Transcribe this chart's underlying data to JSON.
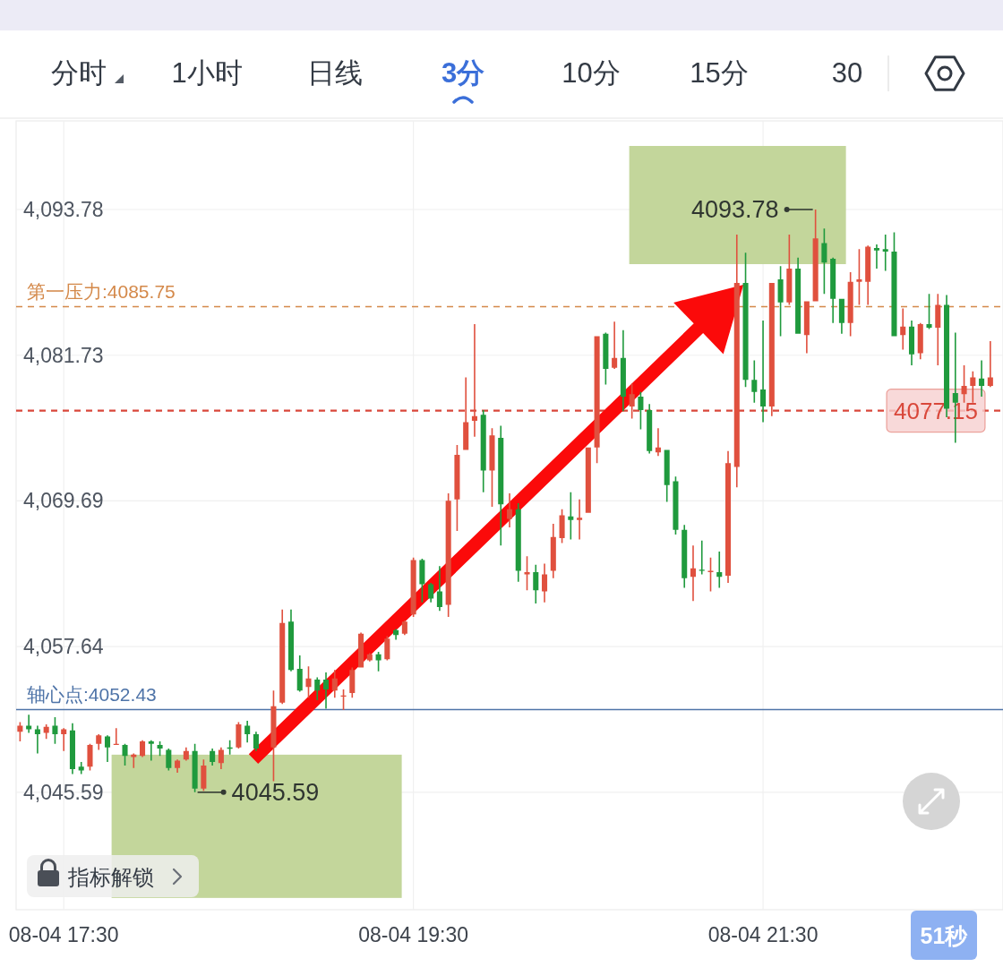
{
  "chart_data": {
    "type": "candlestick",
    "categories": [
      null,
      null,
      null,
      null,
      null,
      "08-04 17:30",
      null,
      null,
      null,
      null,
      null,
      null,
      null,
      null,
      null,
      null,
      null,
      null,
      null,
      null,
      null,
      null,
      null,
      null,
      null,
      null,
      null,
      null,
      null,
      null,
      null,
      null,
      null,
      null,
      null,
      null,
      null,
      null,
      null,
      null,
      null,
      null,
      null,
      null,
      null,
      "08-04 19:30",
      null,
      null,
      null,
      null,
      null,
      null,
      null,
      null,
      null,
      null,
      null,
      null,
      null,
      null,
      null,
      null,
      null,
      null,
      null,
      null,
      null,
      null,
      null,
      null,
      null,
      null,
      null,
      null,
      null,
      null,
      null,
      null,
      null,
      null,
      null,
      null,
      null,
      null,
      null,
      "08-04 21:30",
      null,
      null,
      null,
      null,
      null,
      null,
      null,
      null,
      null,
      null,
      null,
      null,
      null,
      null,
      null,
      null,
      null,
      null,
      null,
      null,
      null,
      null,
      null,
      null,
      null,
      null
    ],
    "ohlc": [
      [
        4050.6,
        4051.4,
        4049.8,
        4051.1
      ],
      [
        4051.1,
        4052.0,
        4050.5,
        4050.8
      ],
      [
        4050.8,
        4051.1,
        4048.8,
        4050.4
      ],
      [
        4050.5,
        4051.2,
        4050.0,
        4051.0
      ],
      [
        4051.1,
        4051.8,
        4049.6,
        4050.4
      ],
      [
        4050.4,
        4050.9,
        4049.0,
        4050.8
      ],
      [
        4050.7,
        4051.3,
        4047.1,
        4047.5
      ],
      [
        4047.7,
        4048.1,
        4047.1,
        4047.4
      ],
      [
        4047.7,
        4049.6,
        4047.4,
        4049.5
      ],
      [
        4049.6,
        4050.4,
        4049.1,
        4050.3
      ],
      [
        4050.2,
        4050.3,
        4048.1,
        4049.3
      ],
      [
        4049.5,
        4050.9,
        4049.5,
        4049.6
      ],
      [
        4049.5,
        4049.6,
        4047.8,
        4048.6
      ],
      [
        4048.5,
        4048.8,
        4047.6,
        4048.7
      ],
      [
        4048.6,
        4049.9,
        4048.5,
        4049.8
      ],
      [
        4049.8,
        4049.9,
        4048.2,
        4049.6
      ],
      [
        4049.5,
        4049.8,
        4048.6,
        4049.2
      ],
      [
        4049.1,
        4049.2,
        4047.4,
        4047.6
      ],
      [
        4047.6,
        4048.3,
        4047.2,
        4048.2
      ],
      [
        4048.3,
        4049.3,
        4048.2,
        4049.0
      ],
      [
        4049.0,
        4049.6,
        4045.59,
        4045.9
      ],
      [
        4045.9,
        4048.3,
        4045.7,
        4047.8
      ],
      [
        4049.0,
        4049.2,
        4047.8,
        4048.1
      ],
      [
        4048.0,
        4049.3,
        4047.5,
        4049.1
      ],
      [
        4049.3,
        4049.9,
        4048.7,
        4049.2
      ],
      [
        4049.3,
        4051.4,
        4049.2,
        4051.2
      ],
      [
        4051.1,
        4051.5,
        4049.7,
        4050.4
      ],
      [
        4050.4,
        4050.6,
        4049.0,
        4049.2
      ],
      null,
      [
        4049.3,
        4054.0,
        4046.5,
        4052.7
      ],
      [
        4053.0,
        4060.7,
        4052.9,
        4059.6
      ],
      [
        4059.7,
        4060.7,
        4055.6,
        4055.7
      ],
      [
        4055.8,
        4056.9,
        4053.9,
        4054.0
      ],
      [
        4054.3,
        4056.0,
        4053.4,
        4055.0
      ],
      [
        4054.9,
        4055.1,
        4053.2,
        4054.0
      ],
      [
        4054.9,
        4055.5,
        4052.5,
        4054.1
      ],
      [
        4054.0,
        4055.7,
        4053.4,
        4055.0
      ],
      [
        4053.5,
        4054.1,
        4052.4,
        4053.6
      ],
      [
        4053.8,
        4055.9,
        4053.4,
        4055.7
      ],
      [
        4055.9,
        4058.8,
        4055.9,
        4058.7
      ],
      [
        4056.5,
        4057.1,
        4056.4,
        4057.0
      ],
      [
        4057.0,
        4057.2,
        4055.6,
        4056.5
      ],
      [
        4056.6,
        4058.5,
        4056.5,
        4058.3
      ],
      [
        4059.0,
        4059.1,
        4058.2,
        4058.6
      ],
      [
        4058.7,
        4059.8,
        4058.6,
        4059.7
      ],
      [
        4060.3,
        4065.0,
        4060.1,
        4064.8
      ],
      [
        4064.8,
        4064.9,
        4061.3,
        4062.8
      ],
      [
        4062.8,
        4062.9,
        4061.3,
        4061.6
      ],
      [
        4062.2,
        4064.3,
        4060.6,
        4060.9
      ],
      [
        4061.1,
        4070.3,
        4060.1,
        4069.7
      ],
      [
        4069.8,
        4074.3,
        4067.2,
        4073.5
      ],
      [
        4073.9,
        4079.9,
        4073.9,
        4076.2
      ],
      [
        4076.3,
        4084.3,
        4075.0,
        4076.7
      ],
      [
        4076.8,
        4077.2,
        4070.4,
        4072.2
      ],
      [
        4072.2,
        4075.7,
        4069.2,
        4075.1
      ],
      [
        4074.9,
        4075.9,
        4066.0,
        4069.4
      ],
      [
        4068.2,
        4070.3,
        4067.5,
        4069.0
      ],
      [
        4069.0,
        4069.5,
        4063.0,
        4063.9
      ],
      [
        4063.6,
        4065.1,
        4062.3,
        4063.8
      ],
      [
        4063.8,
        4064.4,
        4061.2,
        4062.3
      ],
      [
        4062.2,
        4064.5,
        4061.3,
        4063.6
      ],
      [
        4063.9,
        4067.8,
        4063.3,
        4066.7
      ],
      [
        4066.6,
        4069.0,
        4066.2,
        4068.5
      ],
      [
        4068.4,
        4070.4,
        4066.5,
        4068.1
      ],
      [
        4068.1,
        4069.8,
        4066.5,
        4068.3
      ],
      [
        4068.7,
        4074.1,
        4068.7,
        4074.1
      ],
      [
        4074.1,
        4083.3,
        4072.8,
        4083.3
      ],
      [
        4083.5,
        4083.6,
        4079.3,
        4080.6
      ],
      [
        4080.7,
        4084.5,
        4080.6,
        4081.5
      ],
      [
        4081.5,
        4083.8,
        4077.1,
        4078.3
      ],
      [
        4077.5,
        4079.4,
        4076.5,
        4078.5
      ],
      [
        4078.3,
        4078.7,
        4075.6,
        4077.2
      ],
      [
        4077.2,
        4077.7,
        4073.6,
        4073.8
      ],
      [
        4073.7,
        4075.7,
        4073.4,
        4074.1
      ],
      [
        4073.9,
        4073.9,
        4069.6,
        4071.0
      ],
      [
        4071.3,
        4071.7,
        4066.9,
        4067.3
      ],
      [
        4067.3,
        4067.7,
        4062.5,
        4063.3
      ],
      [
        4063.4,
        4066.0,
        4061.4,
        4064.1
      ],
      [
        4064.0,
        4066.4,
        4063.6,
        4063.9
      ],
      [
        4063.8,
        4065.0,
        4062.2,
        4063.9
      ],
      [
        4063.8,
        4065.5,
        4062.5,
        4063.4
      ],
      [
        4063.5,
        4073.8,
        4062.9,
        4072.8
      ],
      [
        4072.5,
        4091.7,
        4070.8,
        4087.7
      ],
      [
        4087.7,
        4090.2,
        4079.1,
        4079.7
      ],
      [
        4079.7,
        4081.3,
        4077.8,
        4078.7
      ],
      [
        4078.9,
        4084.6,
        4076.2,
        4077.5
      ],
      [
        4077.5,
        4087.7,
        4076.7,
        4087.7
      ],
      [
        4088.0,
        4089.1,
        4083.3,
        4086.1
      ],
      [
        4086.1,
        4091.7,
        4085.9,
        4088.9
      ],
      [
        4088.9,
        4089.8,
        4083.5,
        4083.5
      ],
      [
        4083.4,
        4086.2,
        4081.9,
        4086.2
      ],
      [
        4086.2,
        4093.78,
        4086.2,
        4091.4
      ],
      [
        4091.0,
        4092.2,
        4086.8,
        4089.4
      ],
      [
        4089.7,
        4089.8,
        4084.4,
        4086.4
      ],
      [
        4086.4,
        4086.4,
        4083.5,
        4084.4
      ],
      [
        4084.4,
        4088.6,
        4083.3,
        4087.8
      ],
      [
        4087.8,
        4090.5,
        4085.9,
        4088.0
      ],
      [
        4087.8,
        4090.8,
        4085.9,
        4090.7
      ],
      [
        4090.6,
        4090.9,
        4088.9,
        4090.4
      ],
      [
        4090.5,
        4091.7,
        4088.7,
        4090.3
      ],
      [
        4090.3,
        4091.9,
        4083.3,
        4083.3
      ],
      [
        4083.4,
        4085.6,
        4082.2,
        4084.1
      ],
      [
        4084.1,
        4084.6,
        4080.9,
        4081.8
      ],
      [
        4081.9,
        4084.4,
        4081.4,
        4084.3
      ],
      [
        4084.3,
        4086.8,
        4083.9,
        4084.0
      ],
      [
        4084.0,
        4086.8,
        4080.9,
        4085.9
      ],
      [
        4085.9,
        4086.7,
        4076.6,
        4077.3
      ],
      [
        4078.6,
        4083.6,
        4074.5,
        4077.8
      ],
      [
        4078.5,
        4080.9,
        4077.8,
        4079.2
      ],
      [
        4079.2,
        4080.4,
        4077.8,
        4079.9
      ],
      [
        4079.8,
        4081.3,
        4078.3,
        4079.2
      ],
      [
        4079.2,
        4082.9,
        4079.1,
        4079.9
      ]
    ],
    "colors": [
      "#e0503e",
      "#1f9a3d",
      "#1f9a3d",
      "#e0503e",
      "#1f9a3d",
      "#e0503e",
      "#1f9a3d",
      "#1f9a3d",
      "#e0503e",
      "#e0503e",
      "#1f9a3d",
      "#e0503e",
      "#1f9a3d",
      "#e0503e",
      "#e0503e",
      "#1f9a3d",
      "#1f9a3d",
      "#1f9a3d",
      "#e0503e",
      "#e0503e",
      "#1f9a3d",
      "#e0503e",
      "#1f9a3d",
      "#e0503e",
      "#1f9a3d",
      "#e0503e",
      "#1f9a3d",
      "#1f9a3d",
      null,
      "#e0503e",
      "#e0503e",
      "#1f9a3d",
      "#1f9a3d",
      "#e0503e",
      "#1f9a3d",
      "#1f9a3d",
      "#e0503e",
      "#e0503e",
      "#e0503e",
      "#e0503e",
      "#e0503e",
      "#1f9a3d",
      "#e0503e",
      "#1f9a3d",
      "#e0503e",
      "#e0503e",
      "#1f9a3d",
      "#1f9a3d",
      "#1f9a3d",
      "#e0503e",
      "#e0503e",
      "#e0503e",
      "#e0503e",
      "#1f9a3d",
      "#e0503e",
      "#1f9a3d",
      "#e0503e",
      "#1f9a3d",
      "#e0503e",
      "#1f9a3d",
      "#e0503e",
      "#e0503e",
      "#e0503e",
      "#1f9a3d",
      "#e0503e",
      "#e0503e",
      "#e0503e",
      "#1f9a3d",
      "#e0503e",
      "#1f9a3d",
      "#e0503e",
      "#1f9a3d",
      "#1f9a3d",
      "#e0503e",
      "#1f9a3d",
      "#1f9a3d",
      "#1f9a3d",
      "#e0503e",
      "#1f9a3d",
      "#e0503e",
      "#1f9a3d",
      "#e0503e",
      "#e0503e",
      "#1f9a3d",
      "#1f9a3d",
      "#1f9a3d",
      "#e0503e",
      "#1f9a3d",
      "#e0503e",
      "#1f9a3d",
      "#e0503e",
      "#e0503e",
      "#1f9a3d",
      "#1f9a3d",
      "#1f9a3d",
      "#e0503e",
      "#e0503e",
      "#e0503e",
      "#1f9a3d",
      "#1f9a3d",
      "#1f9a3d",
      "#e0503e",
      "#1f9a3d",
      "#e0503e",
      "#1f9a3d",
      "#e0503e",
      "#1f9a3d",
      "#1f9a3d",
      "#e0503e",
      "#e0503e",
      "#1f9a3d",
      "#e0503e"
    ],
    "ylim": [
      4035.88,
      4101.11
    ],
    "yticks": [
      {
        "value": 4045.59,
        "label": "4,045.59"
      },
      {
        "value": 4057.64,
        "label": "4,057.64"
      },
      {
        "value": 4069.69,
        "label": "4,069.69"
      },
      {
        "value": 4081.73,
        "label": "4,081.73"
      },
      {
        "value": 4093.78,
        "label": "4,093.78"
      }
    ],
    "grid": true,
    "ref_lines": [
      {
        "axis": "y",
        "value": 4085.75,
        "label": "第一压力:4085.75",
        "color": "#d4894a",
        "line_style": "dashed"
      },
      {
        "axis": "y",
        "value": 4052.43,
        "label": "轴心点:4052.43",
        "color": "#4f74a8",
        "line_style": "solid"
      },
      {
        "axis": "y",
        "value": 4077.15,
        "label": "4077.15",
        "color": "#d9473a",
        "line_style": "dashed"
      }
    ],
    "annotations": [
      "分时",
      "1小时",
      "日线",
      "3分",
      "10分",
      "15分",
      "30",
      "指标解锁",
      "51秒",
      "4093.78",
      "4045.59"
    ]
  }
}
